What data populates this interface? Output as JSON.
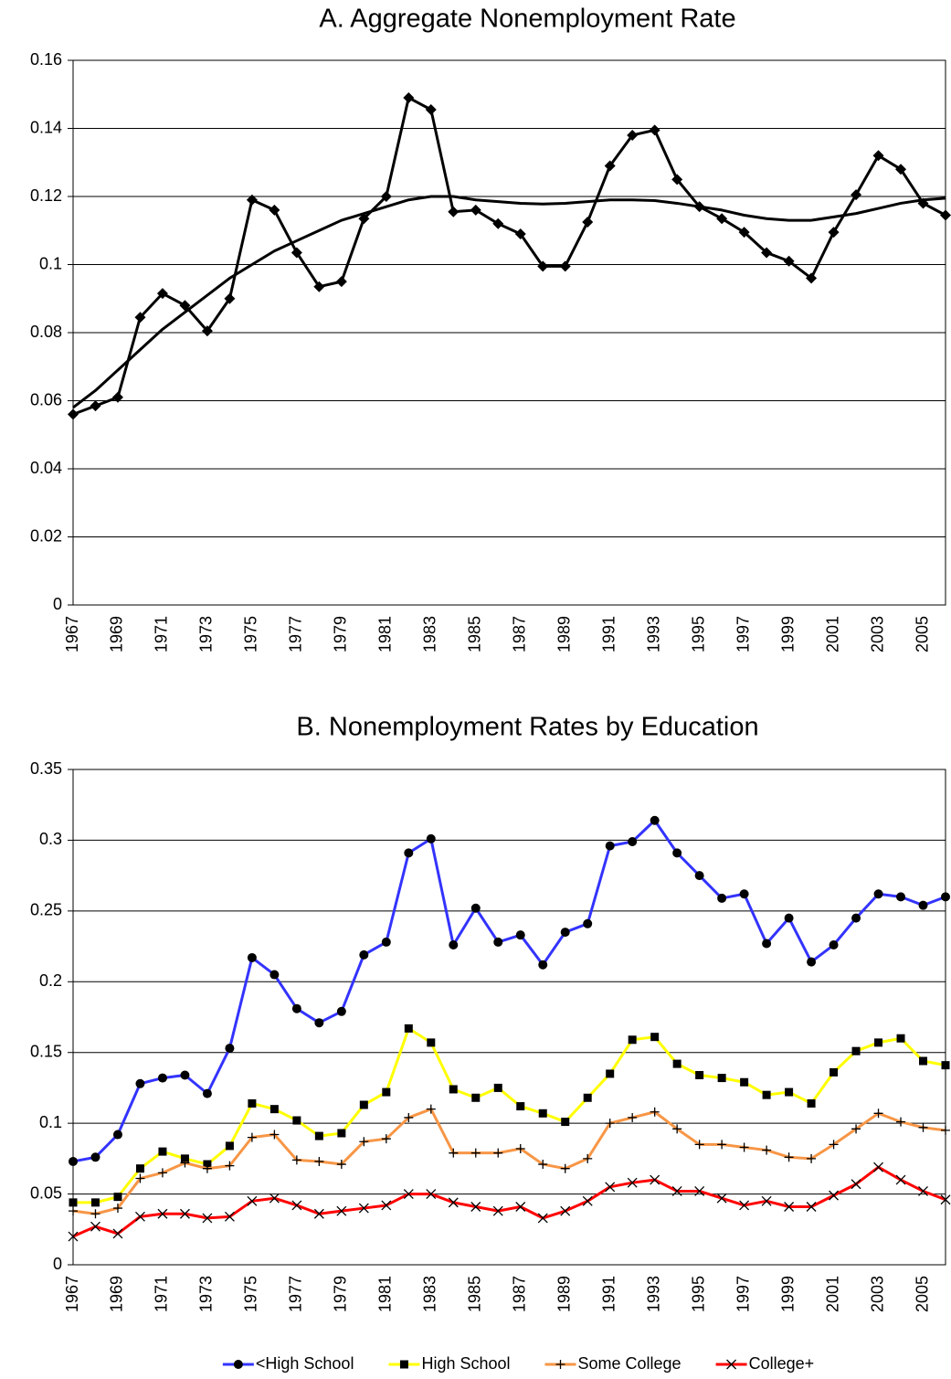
{
  "chart_data": [
    {
      "type": "line",
      "title": "A. Aggregate Nonemployment Rate",
      "categories": [
        "1967",
        null,
        "1969",
        null,
        "1971",
        null,
        "1973",
        null,
        "1975",
        null,
        "1977",
        null,
        "1979",
        null,
        "1981",
        null,
        "1983",
        null,
        "1985",
        null,
        "1987",
        null,
        "1989",
        null,
        "1991",
        null,
        "1993",
        null,
        "1995",
        null,
        "1997",
        null,
        "1999",
        null,
        "2001",
        null,
        "2003",
        null,
        "2005",
        null
      ],
      "series": [
        {
          "color": "#000000",
          "marker": "diamond",
          "values": [
            0.056,
            0.0585,
            0.061,
            0.0845,
            0.0915,
            0.088,
            0.0805,
            0.09,
            0.119,
            0.116,
            0.1035,
            0.0935,
            0.095,
            0.1135,
            0.12,
            0.149,
            0.1455,
            0.1155,
            0.116,
            0.112,
            0.109,
            0.0995,
            0.0995,
            0.1125,
            0.129,
            0.138,
            0.1395,
            0.125,
            0.117,
            0.1135,
            0.1095,
            0.1035,
            0.101,
            0.096,
            0.1095,
            0.1205,
            0.132,
            0.128,
            0.118,
            0.1145
          ]
        },
        {
          "color": "#000000",
          "marker": "none",
          "values": [
            0.058,
            0.063,
            0.069,
            0.075,
            0.081,
            0.086,
            0.091,
            0.096,
            0.1,
            0.104,
            0.107,
            0.11,
            0.113,
            0.115,
            0.117,
            0.119,
            0.12,
            0.12,
            0.119,
            0.1185,
            0.118,
            0.1178,
            0.118,
            0.1185,
            0.119,
            0.119,
            0.1188,
            0.118,
            0.117,
            0.116,
            0.1145,
            0.1135,
            0.113,
            0.113,
            0.114,
            0.115,
            0.1165,
            0.118,
            0.119,
            0.1195
          ]
        }
      ],
      "ylim": [
        0,
        0.16
      ],
      "yticks": [
        0,
        0.02,
        0.04,
        0.06,
        0.08,
        0.1,
        0.12,
        0.14,
        0.16
      ],
      "grid": true,
      "legend": "none"
    },
    {
      "type": "line",
      "title": "B. Nonemployment Rates by Education",
      "categories": [
        "1967",
        null,
        "1969",
        null,
        "1971",
        null,
        "1973",
        null,
        "1975",
        null,
        "1977",
        null,
        "1979",
        null,
        "1981",
        null,
        "1983",
        null,
        "1985",
        null,
        "1987",
        null,
        "1989",
        null,
        "1991",
        null,
        "1993",
        null,
        "1995",
        null,
        "1997",
        null,
        "1999",
        null,
        "2001",
        null,
        "2003",
        null,
        "2005",
        null
      ],
      "series": [
        {
          "name": "<High School",
          "color": "#3333ff",
          "marker": "circle",
          "values": [
            0.073,
            0.076,
            0.092,
            0.128,
            0.132,
            0.134,
            0.121,
            0.153,
            0.217,
            0.205,
            0.181,
            0.171,
            0.179,
            0.219,
            0.228,
            0.291,
            0.301,
            0.226,
            0.252,
            0.228,
            0.233,
            0.212,
            0.235,
            0.241,
            0.296,
            0.299,
            0.314,
            0.291,
            0.275,
            0.259,
            0.262,
            0.227,
            0.245,
            0.214,
            0.226,
            0.245,
            0.262,
            0.26,
            0.254,
            0.26
          ]
        },
        {
          "name": "High School",
          "color": "#ffff00",
          "marker": "square",
          "values": [
            0.044,
            0.044,
            0.048,
            0.068,
            0.08,
            0.075,
            0.071,
            0.084,
            0.114,
            0.11,
            0.102,
            0.091,
            0.093,
            0.113,
            0.122,
            0.167,
            0.157,
            0.124,
            0.118,
            0.125,
            0.112,
            0.107,
            0.101,
            0.118,
            0.135,
            0.159,
            0.161,
            0.142,
            0.134,
            0.132,
            0.129,
            0.12,
            0.122,
            0.114,
            0.136,
            0.151,
            0.157,
            0.16,
            0.144,
            0.141
          ]
        },
        {
          "name": "Some College",
          "color": "#f79646",
          "marker": "plus",
          "values": [
            0.038,
            0.036,
            0.04,
            0.061,
            0.065,
            0.072,
            0.068,
            0.07,
            0.09,
            0.092,
            0.074,
            0.073,
            0.071,
            0.087,
            0.089,
            0.104,
            0.11,
            0.079,
            0.079,
            0.079,
            0.082,
            0.071,
            0.068,
            0.075,
            0.1,
            0.104,
            0.108,
            0.096,
            0.085,
            0.085,
            0.083,
            0.081,
            0.076,
            0.075,
            0.085,
            0.096,
            0.107,
            0.101,
            0.097,
            0.095
          ]
        },
        {
          "name": "College+",
          "color": "#ff0000",
          "marker": "x",
          "values": [
            0.02,
            0.027,
            0.022,
            0.034,
            0.036,
            0.036,
            0.033,
            0.034,
            0.045,
            0.047,
            0.042,
            0.036,
            0.038,
            0.04,
            0.042,
            0.05,
            0.05,
            0.044,
            0.041,
            0.038,
            0.041,
            0.033,
            0.038,
            0.045,
            0.055,
            0.058,
            0.06,
            0.052,
            0.052,
            0.047,
            0.042,
            0.045,
            0.041,
            0.041,
            0.049,
            0.057,
            0.069,
            0.06,
            0.052,
            0.046
          ]
        }
      ],
      "ylim": [
        0,
        0.35
      ],
      "yticks": [
        0,
        0.05,
        0.1,
        0.15,
        0.2,
        0.25,
        0.3,
        0.35
      ],
      "grid": true,
      "legend": "bottom"
    }
  ]
}
